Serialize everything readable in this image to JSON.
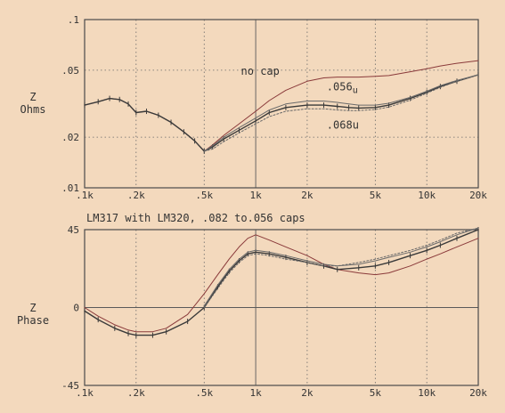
{
  "chart_data": [
    {
      "type": "line",
      "name": "impedance-magnitude",
      "ylabel_lines": [
        "Z",
        "Ohms"
      ],
      "xscale": "log",
      "yscale": "log",
      "xlim": [
        100,
        20000
      ],
      "ylim": [
        0.01,
        0.1
      ],
      "x_ticks": [
        {
          "v": 100,
          "t": ".1k"
        },
        {
          "v": 200,
          "t": ".2k"
        },
        {
          "v": 500,
          "t": ".5k"
        },
        {
          "v": 1000,
          "t": "1k"
        },
        {
          "v": 2000,
          "t": "2k"
        },
        {
          "v": 5000,
          "t": "5k"
        },
        {
          "v": 10000,
          "t": "10k"
        },
        {
          "v": 20000,
          "t": "20k"
        }
      ],
      "y_ticks": [
        {
          "v": 0.01,
          "t": ".01"
        },
        {
          "v": 0.02,
          "t": ".02"
        },
        {
          "v": 0.05,
          "t": ".05"
        },
        {
          "v": 0.1,
          "t": ".1"
        }
      ],
      "grid": true,
      "annotations": [
        {
          "text": "no cap",
          "x": 820,
          "y": 0.047
        },
        {
          "text": ".056",
          "sub": "u",
          "x": 2600,
          "y": 0.038
        },
        {
          "text": ".068u",
          "x": 2600,
          "y": 0.0225
        }
      ],
      "series": [
        {
          "key": "nocap",
          "color": "#8a3a3a",
          "style": "solid",
          "x": [
            100,
            120,
            140,
            160,
            180,
            200,
            230,
            270,
            320,
            380,
            440,
            500,
            560,
            650,
            800,
            1000,
            1200,
            1500,
            2000,
            2500,
            3000,
            3500,
            4000,
            5000,
            6000,
            8000,
            10000,
            12000,
            15000,
            20000
          ],
          "y": [
            0.031,
            0.0325,
            0.034,
            0.0335,
            0.0315,
            0.028,
            0.0285,
            0.027,
            0.0245,
            0.0215,
            0.019,
            0.0165,
            0.018,
            0.0205,
            0.024,
            0.0285,
            0.033,
            0.038,
            0.043,
            0.045,
            0.0455,
            0.0455,
            0.0455,
            0.046,
            0.0465,
            0.049,
            0.051,
            0.053,
            0.055,
            0.057
          ]
        },
        {
          "key": "c082",
          "color": "#3a3a3a",
          "style": "solid",
          "markers": true,
          "x": [
            100,
            120,
            140,
            160,
            180,
            200,
            230,
            270,
            320,
            380,
            440,
            500,
            560,
            650,
            800,
            1000,
            1200,
            1500,
            2000,
            2500,
            3000,
            3500,
            4000,
            5000,
            6000,
            8000,
            10000,
            12000,
            15000,
            20000
          ],
          "y": [
            0.031,
            0.0325,
            0.034,
            0.0335,
            0.0315,
            0.028,
            0.0285,
            0.027,
            0.0245,
            0.0215,
            0.019,
            0.0165,
            0.0175,
            0.0195,
            0.022,
            0.025,
            0.028,
            0.03,
            0.031,
            0.031,
            0.0305,
            0.03,
            0.0298,
            0.03,
            0.031,
            0.034,
            0.037,
            0.04,
            0.043,
            0.047
          ]
        },
        {
          "key": "c056",
          "color": "#6a6a6a",
          "style": "solid",
          "x": [
            500,
            560,
            650,
            800,
            1000,
            1200,
            1500,
            2000,
            2500,
            3000,
            3500,
            4000,
            5000,
            6000,
            8000,
            10000,
            12000,
            15000,
            20000
          ],
          "y": [
            0.0165,
            0.0178,
            0.02,
            0.0228,
            0.026,
            0.029,
            0.0315,
            0.0328,
            0.0328,
            0.0322,
            0.0315,
            0.031,
            0.031,
            0.0318,
            0.0345,
            0.0375,
            0.0405,
            0.0435,
            0.047
          ]
        },
        {
          "key": "c068",
          "color": "#6a6a6a",
          "style": "dashed",
          "x": [
            500,
            560,
            650,
            800,
            1000,
            1200,
            1500,
            2000,
            2500,
            3000,
            3500,
            4000,
            5000,
            6000,
            8000,
            10000,
            12000,
            15000,
            20000
          ],
          "y": [
            0.0165,
            0.017,
            0.0188,
            0.0212,
            0.024,
            0.0265,
            0.0285,
            0.0295,
            0.0295,
            0.029,
            0.0288,
            0.0288,
            0.0292,
            0.0302,
            0.0332,
            0.0365,
            0.0395,
            0.043,
            0.047
          ]
        }
      ]
    },
    {
      "type": "line",
      "name": "impedance-phase",
      "title": "LM317 with LM320, .082 to.056 caps",
      "ylabel_lines": [
        "Z",
        "Phase"
      ],
      "xscale": "log",
      "yscale": "linear",
      "xlim": [
        100,
        20000
      ],
      "ylim": [
        -45,
        45
      ],
      "x_ticks": [
        {
          "v": 100,
          "t": ".1k"
        },
        {
          "v": 200,
          "t": ".2k"
        },
        {
          "v": 500,
          "t": ".5k"
        },
        {
          "v": 1000,
          "t": "1k"
        },
        {
          "v": 2000,
          "t": "2k"
        },
        {
          "v": 5000,
          "t": "5k"
        },
        {
          "v": 10000,
          "t": "10k"
        },
        {
          "v": 20000,
          "t": "20k"
        }
      ],
      "y_ticks": [
        {
          "v": 45,
          "t": "45"
        },
        {
          "v": 0,
          "t": "0"
        },
        {
          "v": -45,
          "t": "-45"
        }
      ],
      "grid": true,
      "series": [
        {
          "key": "nocap",
          "color": "#8a3a3a",
          "style": "solid",
          "x": [
            100,
            120,
            150,
            180,
            200,
            250,
            300,
            400,
            500,
            600,
            700,
            800,
            900,
            1000,
            1200,
            1500,
            2000,
            2500,
            3000,
            4000,
            5000,
            6000,
            8000,
            10000,
            12000,
            15000,
            20000
          ],
          "y": [
            0,
            -5,
            -10,
            -13,
            -14,
            -14,
            -12,
            -4,
            8,
            19,
            28,
            35,
            40,
            42,
            39,
            35,
            30,
            25,
            22,
            20,
            19,
            20,
            24,
            28,
            31,
            35,
            40
          ]
        },
        {
          "key": "c082",
          "color": "#3a3a3a",
          "style": "solid",
          "markers": true,
          "x": [
            100,
            120,
            150,
            180,
            200,
            250,
            300,
            400,
            500,
            600,
            700,
            800,
            900,
            1000,
            1200,
            1500,
            2000,
            2500,
            3000,
            4000,
            5000,
            6000,
            8000,
            10000,
            12000,
            15000,
            20000
          ],
          "y": [
            -2,
            -7,
            -12,
            -15,
            -16,
            -16,
            -14,
            -8,
            0,
            12,
            21,
            27,
            31,
            32,
            31,
            29,
            26,
            24,
            22,
            23,
            24,
            26,
            30,
            33,
            36,
            40,
            45
          ]
        },
        {
          "key": "c056",
          "color": "#6a6a6a",
          "style": "solid",
          "x": [
            500,
            600,
            700,
            800,
            900,
            1000,
            1200,
            1500,
            2000,
            2500,
            3000,
            4000,
            5000,
            6000,
            8000,
            10000,
            12000,
            15000,
            20000
          ],
          "y": [
            1,
            13,
            22,
            28,
            32,
            33,
            32,
            30,
            27,
            25,
            24,
            25,
            27,
            29,
            32,
            35,
            38,
            42,
            46
          ]
        },
        {
          "key": "c068",
          "color": "#6a6a6a",
          "style": "dashed",
          "x": [
            500,
            600,
            700,
            800,
            900,
            1000,
            1200,
            1500,
            2000,
            2500,
            3000,
            4000,
            5000,
            6000,
            8000,
            10000,
            12000,
            15000,
            20000
          ],
          "y": [
            0,
            11,
            20,
            26,
            30,
            31,
            30,
            28,
            26,
            24,
            24,
            26,
            28,
            30,
            33,
            36,
            39,
            43,
            46
          ]
        }
      ]
    }
  ]
}
